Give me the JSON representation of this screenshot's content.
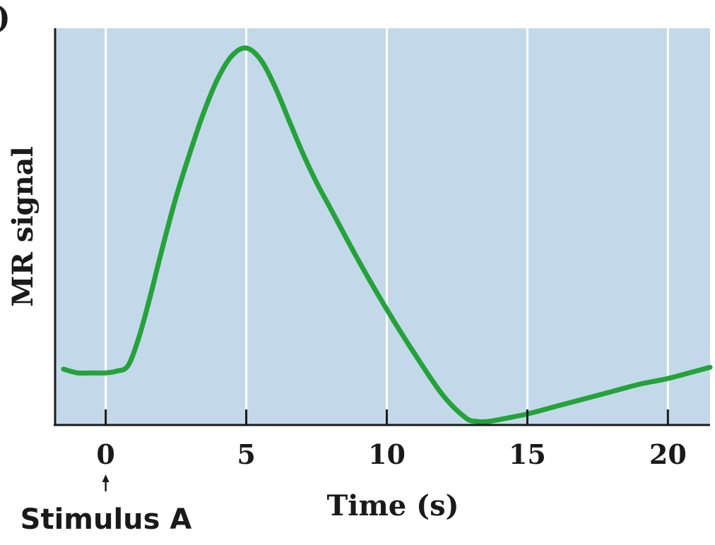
{
  "panel_label": ")",
  "colors": {
    "plot_background": "#c3d9ea",
    "gridline": "#ffffff",
    "curve": "#25a23a",
    "axis": "#1a1a1a"
  },
  "chart_data": {
    "type": "line",
    "title": "",
    "xlabel": "Time (s)",
    "ylabel": "MR signal",
    "xlim": [
      -1.8,
      21.5
    ],
    "ylim": [
      0,
      1
    ],
    "x_ticks": [
      0,
      5,
      10,
      15,
      20
    ],
    "x_tick_labels": [
      "0",
      "5",
      "10",
      "15",
      "20"
    ],
    "grid": true,
    "series": [
      {
        "x": [
          -1.5,
          -1.0,
          -0.5,
          0.0,
          0.4,
          0.8,
          1.2,
          1.6,
          2.0,
          2.5,
          3.0,
          3.5,
          4.0,
          4.5,
          5.0,
          5.5,
          6.0,
          6.5,
          7.0,
          7.5,
          8.0,
          9.0,
          10.0,
          11.0,
          12.0,
          12.8,
          13.2,
          13.6,
          14.0,
          15.0,
          16.0,
          17.0,
          18.0,
          19.0,
          20.0,
          21.0,
          21.5
        ],
        "y": [
          0.14,
          0.13,
          0.13,
          0.13,
          0.135,
          0.15,
          0.23,
          0.34,
          0.46,
          0.6,
          0.72,
          0.83,
          0.92,
          0.98,
          1.0,
          0.97,
          0.9,
          0.81,
          0.72,
          0.64,
          0.57,
          0.43,
          0.3,
          0.18,
          0.07,
          0.01,
          0.0,
          0.0,
          0.005,
          0.02,
          0.04,
          0.06,
          0.08,
          0.1,
          0.115,
          0.135,
          0.145
        ]
      }
    ],
    "annotations": [
      {
        "label": "Stimulus A",
        "x": 0,
        "arrow": "up"
      }
    ]
  }
}
